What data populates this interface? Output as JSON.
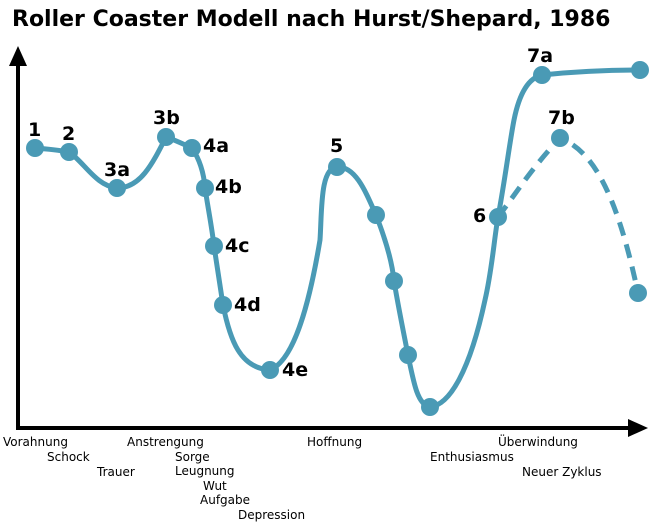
{
  "title": "Roller Coaster Modell nach Hurst/Shepard, 1986",
  "colors": {
    "curve": "#4a9ab5",
    "node": "#4a9ab5",
    "axis": "#000000",
    "text": "#000000"
  },
  "node_labels": {
    "n1": "1",
    "n2": "2",
    "n3a": "3a",
    "n3b": "3b",
    "n4a": "4a",
    "n4b": "4b",
    "n4c": "4c",
    "n4d": "4d",
    "n4e": "4e",
    "n5": "5",
    "n6": "6",
    "n7a": "7a",
    "n7b": "7b"
  },
  "x_labels": {
    "vorahnung": "Vorahnung",
    "schock": "Schock",
    "trauer": "Trauer",
    "anstrengung": "Anstrengung",
    "sorge": "Sorge",
    "leugnung": "Leugnung",
    "wut": "Wut",
    "aufgabe": "Aufgabe",
    "depression": "Depression",
    "hoffnung": "Hoffnung",
    "enthusiasmus": "Enthusiasmus",
    "ueberwindung": "Überwindung",
    "neuer_zyklus": "Neuer Zyklus"
  }
}
